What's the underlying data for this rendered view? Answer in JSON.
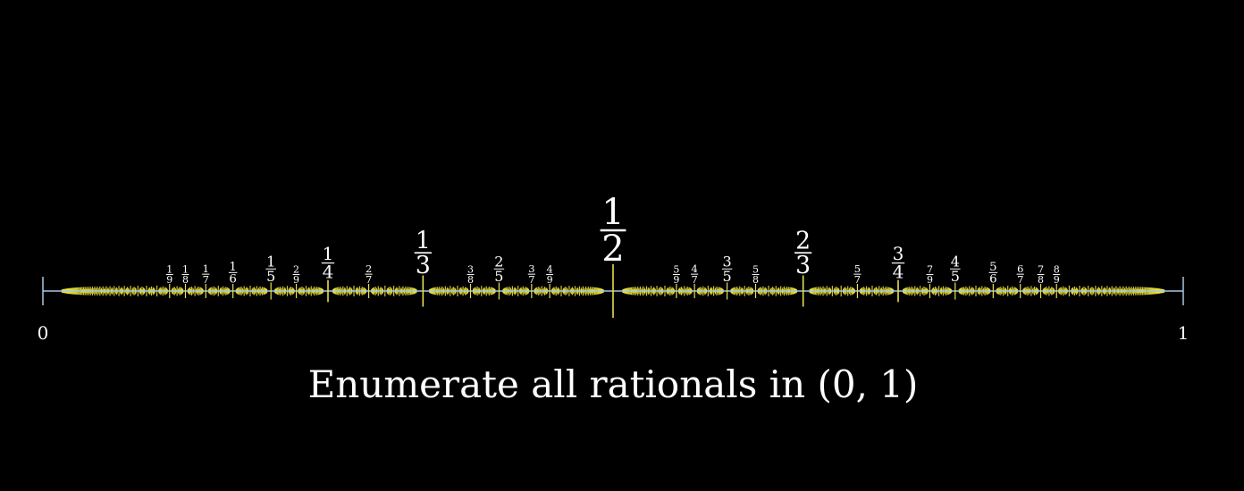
{
  "colors": {
    "background": "#000000",
    "number_line": "#a8c8e0",
    "tick": "#e8e04a",
    "marks": "#f2ea3c",
    "text": "#ffffff"
  },
  "number_line": {
    "start_label": "0",
    "end_label": "1",
    "range": [
      0,
      1
    ]
  },
  "max_denominator_marked": 60,
  "labeled_fractions": [
    {
      "n": 1,
      "d": 2
    },
    {
      "n": 1,
      "d": 3
    },
    {
      "n": 2,
      "d": 3
    },
    {
      "n": 1,
      "d": 4
    },
    {
      "n": 3,
      "d": 4
    },
    {
      "n": 1,
      "d": 5
    },
    {
      "n": 2,
      "d": 5
    },
    {
      "n": 3,
      "d": 5
    },
    {
      "n": 4,
      "d": 5
    },
    {
      "n": 1,
      "d": 6
    },
    {
      "n": 5,
      "d": 6
    },
    {
      "n": 1,
      "d": 7
    },
    {
      "n": 2,
      "d": 7
    },
    {
      "n": 3,
      "d": 7
    },
    {
      "n": 4,
      "d": 7
    },
    {
      "n": 5,
      "d": 7
    },
    {
      "n": 6,
      "d": 7
    },
    {
      "n": 1,
      "d": 8
    },
    {
      "n": 3,
      "d": 8
    },
    {
      "n": 5,
      "d": 8
    },
    {
      "n": 7,
      "d": 8
    },
    {
      "n": 1,
      "d": 9
    },
    {
      "n": 2,
      "d": 9
    },
    {
      "n": 4,
      "d": 9
    },
    {
      "n": 5,
      "d": 9
    },
    {
      "n": 7,
      "d": 9
    },
    {
      "n": 8,
      "d": 9
    }
  ],
  "caption": "Enumerate all rationals in (0, 1)"
}
